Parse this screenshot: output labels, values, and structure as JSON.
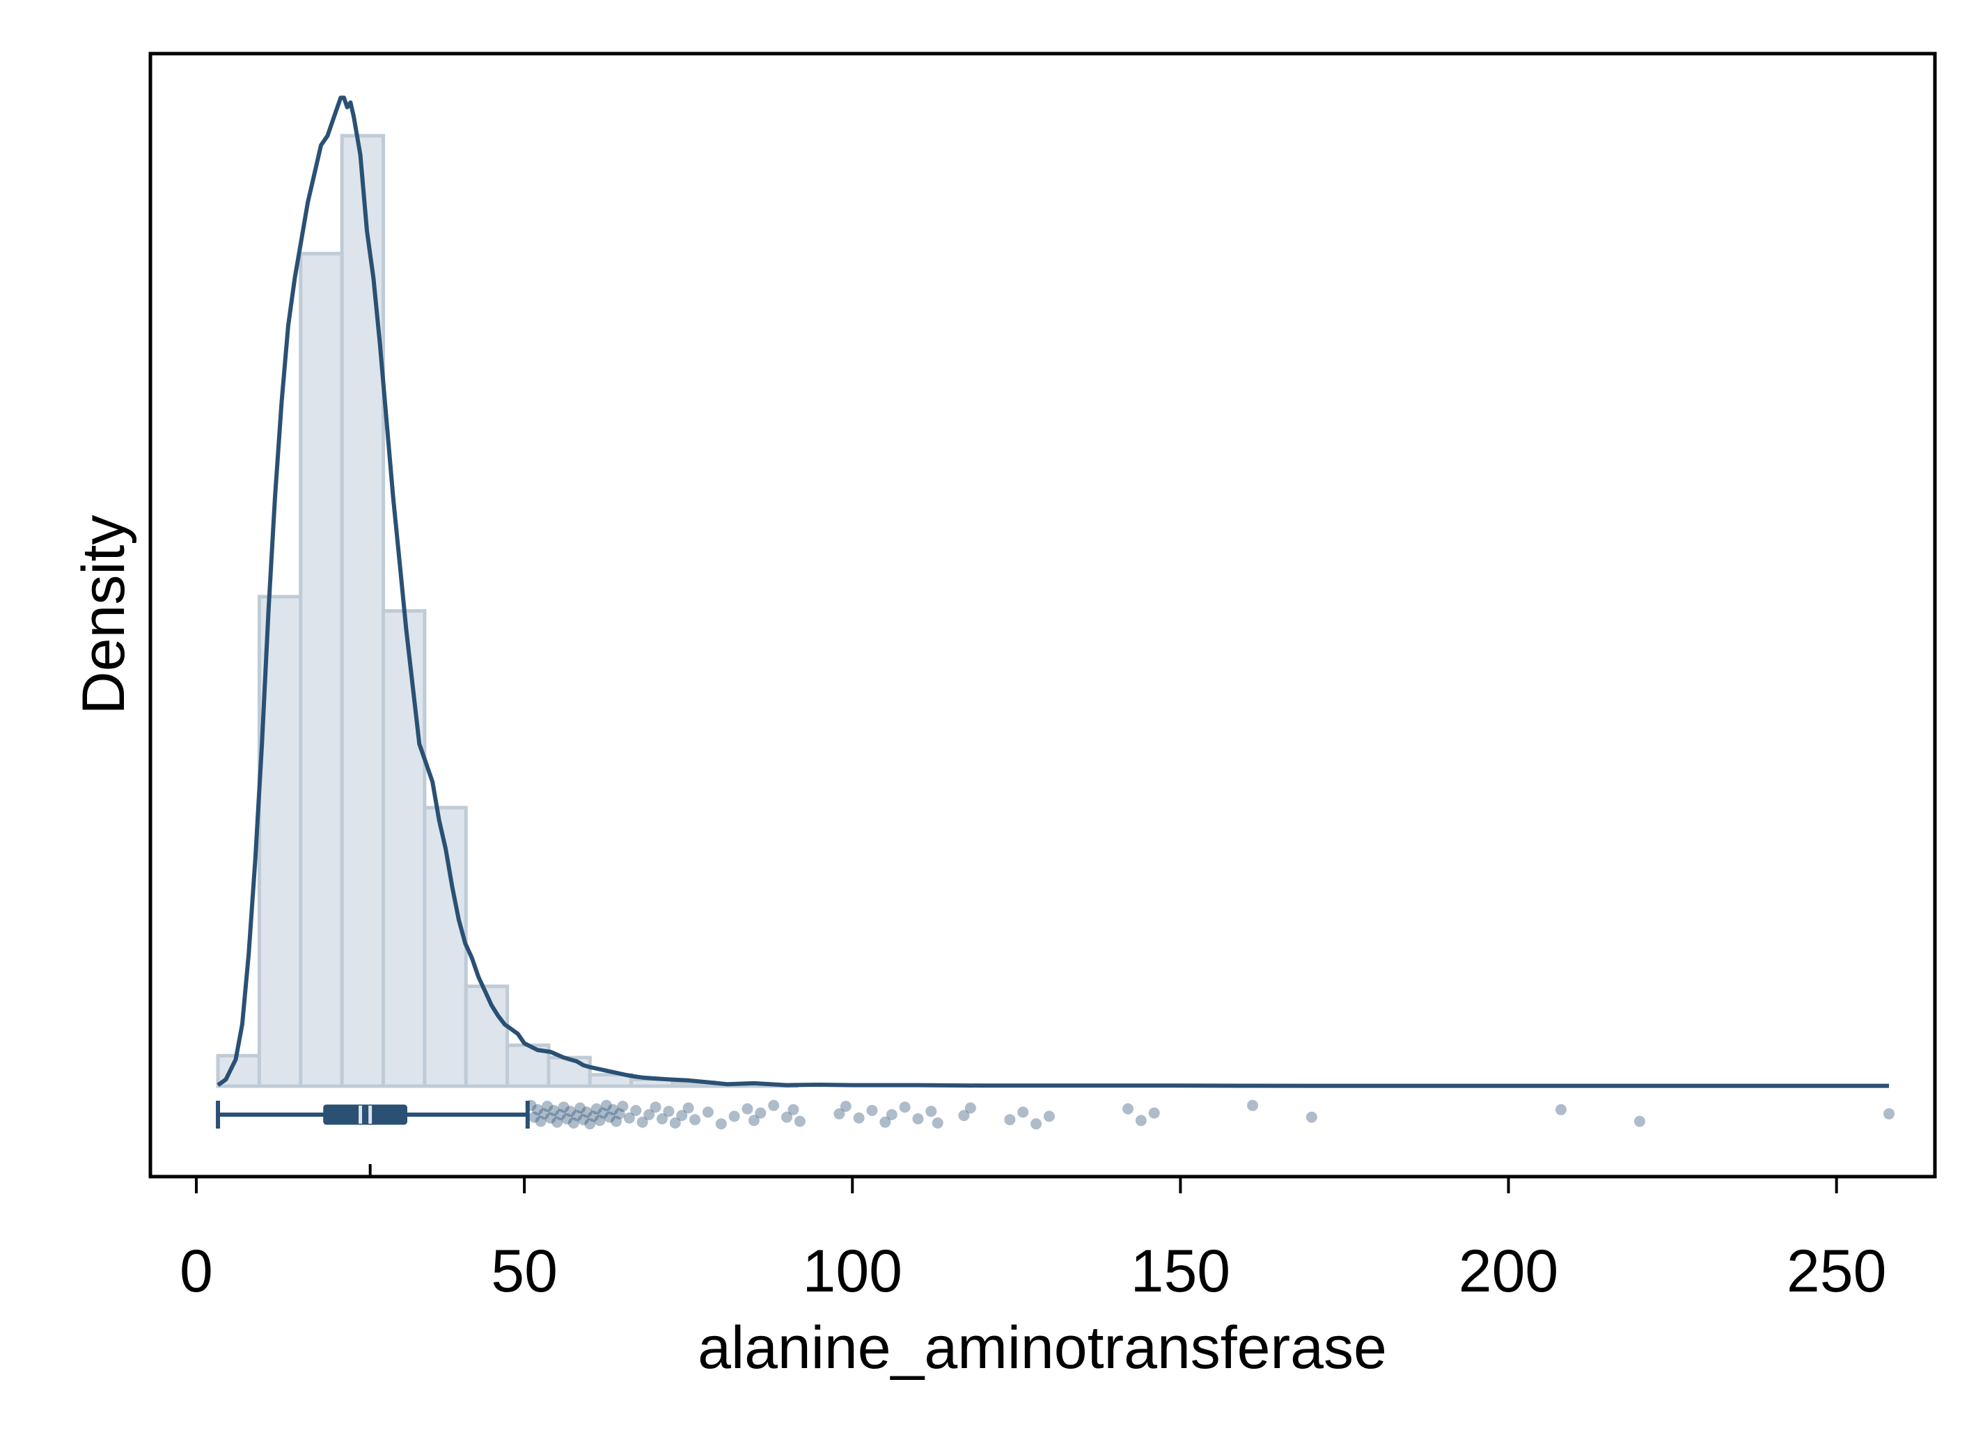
{
  "chart_data": {
    "type": "bar",
    "subtype": "histogram with kernel density, box plot and jittered outlier points",
    "xlabel": "alanine_aminotransferase",
    "ylabel": "Density",
    "xlim": [
      -7,
      265
    ],
    "x_ticks": [
      0,
      50,
      100,
      150,
      200,
      250
    ],
    "y_tick_labels_shown": false,
    "grid": false,
    "legend": "none",
    "colors": {
      "background": "#ffffff",
      "plot_background": "#ffffff",
      "histogram_fill": "#dde4eb",
      "histogram_edge": "#bfcbd6",
      "density_line": "#2a5074",
      "box": "#2a5074",
      "points": "#2a5074",
      "axis": "#000000"
    },
    "histogram": {
      "bins": [
        {
          "x0": 3.3,
          "x1": 9.6,
          "relative_height": 0.032
        },
        {
          "x0": 9.6,
          "x1": 15.9,
          "relative_height": 0.515
        },
        {
          "x0": 15.9,
          "x1": 22.2,
          "relative_height": 0.876
        },
        {
          "x0": 22.2,
          "x1": 28.5,
          "relative_height": 1.0
        },
        {
          "x0": 28.5,
          "x1": 34.8,
          "relative_height": 0.5
        },
        {
          "x0": 34.8,
          "x1": 41.1,
          "relative_height": 0.293
        },
        {
          "x0": 41.1,
          "x1": 47.4,
          "relative_height": 0.105
        },
        {
          "x0": 47.4,
          "x1": 53.7,
          "relative_height": 0.043
        },
        {
          "x0": 53.7,
          "x1": 60.0,
          "relative_height": 0.03
        },
        {
          "x0": 60.0,
          "x1": 66.3,
          "relative_height": 0.012
        },
        {
          "x0": 66.3,
          "x1": 72.6,
          "relative_height": 0.007
        },
        {
          "x0": 72.6,
          "x1": 78.9,
          "relative_height": 0.004
        },
        {
          "x0": 78.9,
          "x1": 85.2,
          "relative_height": 0.002
        },
        {
          "x0": 85.2,
          "x1": 91.5,
          "relative_height": 0.001
        }
      ]
    },
    "density_curve": {
      "x": [
        3.3,
        4.5,
        6.0,
        7.0,
        8.0,
        9.0,
        10.0,
        11.0,
        12.0,
        13.0,
        14.0,
        15.0,
        16.0,
        17.0,
        18.0,
        19.0,
        20.0,
        21.0,
        22.0,
        22.5,
        23.0,
        23.5,
        24.0,
        25.0,
        26.0,
        27.0,
        28.0,
        29.0,
        30.0,
        31.0,
        32.0,
        33.0,
        34.0,
        35.0,
        36.0,
        37.0,
        38.0,
        39.0,
        40.0,
        41.0,
        42.0,
        43.0,
        44.0,
        45.0,
        46.0,
        47.0,
        48.0,
        49.0,
        50.0,
        52.0,
        54.0,
        56.0,
        58.0,
        59.0,
        60.0,
        62.0,
        64.0,
        66.0,
        68.0,
        70.0,
        72.0,
        75.0,
        78.0,
        81.0,
        85.0,
        90.0,
        95.0,
        100.0,
        110.0,
        120.0,
        130.0,
        140.0,
        150.0,
        160.0,
        170.0,
        180.0,
        190.0,
        200.0,
        210.0,
        220.0,
        230.0,
        240.0,
        250.0,
        258.0
      ],
      "relative_density": [
        0.001,
        0.007,
        0.028,
        0.065,
        0.14,
        0.24,
        0.36,
        0.5,
        0.62,
        0.72,
        0.8,
        0.85,
        0.89,
        0.93,
        0.96,
        0.99,
        1.0,
        1.02,
        1.04,
        1.04,
        1.03,
        1.035,
        1.02,
        0.98,
        0.9,
        0.85,
        0.78,
        0.7,
        0.62,
        0.55,
        0.48,
        0.42,
        0.36,
        0.34,
        0.32,
        0.28,
        0.25,
        0.21,
        0.175,
        0.15,
        0.135,
        0.115,
        0.1,
        0.085,
        0.074,
        0.065,
        0.06,
        0.055,
        0.045,
        0.038,
        0.036,
        0.03,
        0.026,
        0.022,
        0.02,
        0.017,
        0.014,
        0.011,
        0.009,
        0.008,
        0.007,
        0.006,
        0.004,
        0.002,
        0.003,
        0.001,
        0.0015,
        0.001,
        0.001,
        0.0005,
        0.0005,
        0.0005,
        0.0006,
        0.0004,
        0.0003,
        0.0003,
        0.0003,
        0.0003,
        0.0003,
        0.0003,
        0.0003,
        0.0003,
        0.0003,
        0.0003
      ]
    },
    "boxplot": {
      "whisker_low": 3.3,
      "q1": 19.5,
      "median": 25.0,
      "mean": 26.5,
      "q3": 32.0,
      "whisker_high": 50.5
    },
    "outlier_points": [
      51,
      51.5,
      52,
      52.5,
      53,
      53.5,
      54,
      54.5,
      55,
      55.5,
      56,
      56.5,
      57,
      57.5,
      58,
      58.5,
      59,
      59.5,
      60,
      60.5,
      61,
      61.5,
      62,
      62.5,
      63,
      63.5,
      64,
      64.5,
      65,
      66,
      67,
      68,
      69,
      70,
      71,
      72,
      73,
      74,
      75,
      76,
      78,
      80,
      82,
      84,
      85,
      86,
      88,
      90,
      91,
      92,
      98,
      99,
      101,
      103,
      105,
      106,
      108,
      110,
      112,
      113,
      117,
      118,
      124,
      126,
      128,
      130,
      142,
      144,
      146,
      161,
      170,
      208,
      220,
      258
    ]
  }
}
